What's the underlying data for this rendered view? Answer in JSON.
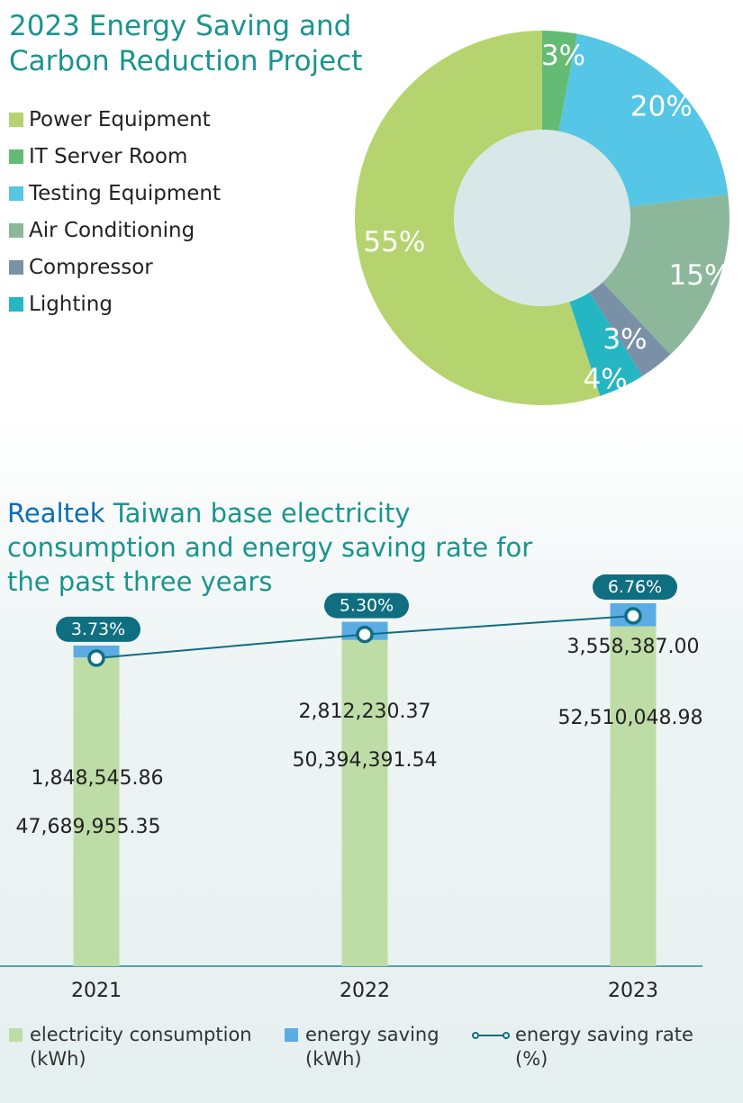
{
  "chart_data": [
    {
      "type": "pie",
      "title": "2023 Energy Saving and Carbon Reduction Project",
      "slices": [
        {
          "label": "Power Equipment",
          "value": 55,
          "text": "55%",
          "color": "#b5d46f"
        },
        {
          "label": "IT Server Room",
          "value": 3,
          "text": "3%",
          "color": "#64bb74"
        },
        {
          "label": "Testing Equipment",
          "value": 20,
          "text": "20%",
          "color": "#56c6e6"
        },
        {
          "label": "Air Conditioning",
          "value": 15,
          "text": "15%",
          "color": "#8cb79a"
        },
        {
          "label": "Compressor",
          "value": 3,
          "text": "3%",
          "color": "#7a90a6"
        },
        {
          "label": "Lighting",
          "value": 4,
          "text": "4%",
          "color": "#25b6c4"
        }
      ],
      "center_color": "#d8e7e7"
    },
    {
      "type": "bar",
      "title_brand": "Realtek",
      "title_rest": " Taiwan base electricity consumption and energy saving rate for the past three years",
      "categories": [
        "2021",
        "2022",
        "2023"
      ],
      "series": [
        {
          "name": "electricity consumption",
          "unit": "(kWh)",
          "values": [
            47689955.35,
            50394391.54,
            52510048.98
          ],
          "labels": [
            "47,689,955.35",
            "50,394,391.54",
            "52,510,048.98"
          ],
          "color": "#bedda6"
        },
        {
          "name": "energy saving",
          "unit": "(kWh)",
          "values": [
            1848545.86,
            2812230.37,
            3558387.0
          ],
          "labels": [
            "1,848,545.86",
            "2,812,230.37",
            "3,558,387.00"
          ],
          "color": "#5aace3"
        },
        {
          "name": "energy saving rate",
          "unit": "(%)",
          "type": "line",
          "values": [
            3.73,
            5.3,
            6.76
          ],
          "labels": [
            "3.73%",
            "5.30%",
            "6.76%"
          ],
          "color": "#0f6e80"
        }
      ],
      "stacked": true
    }
  ]
}
